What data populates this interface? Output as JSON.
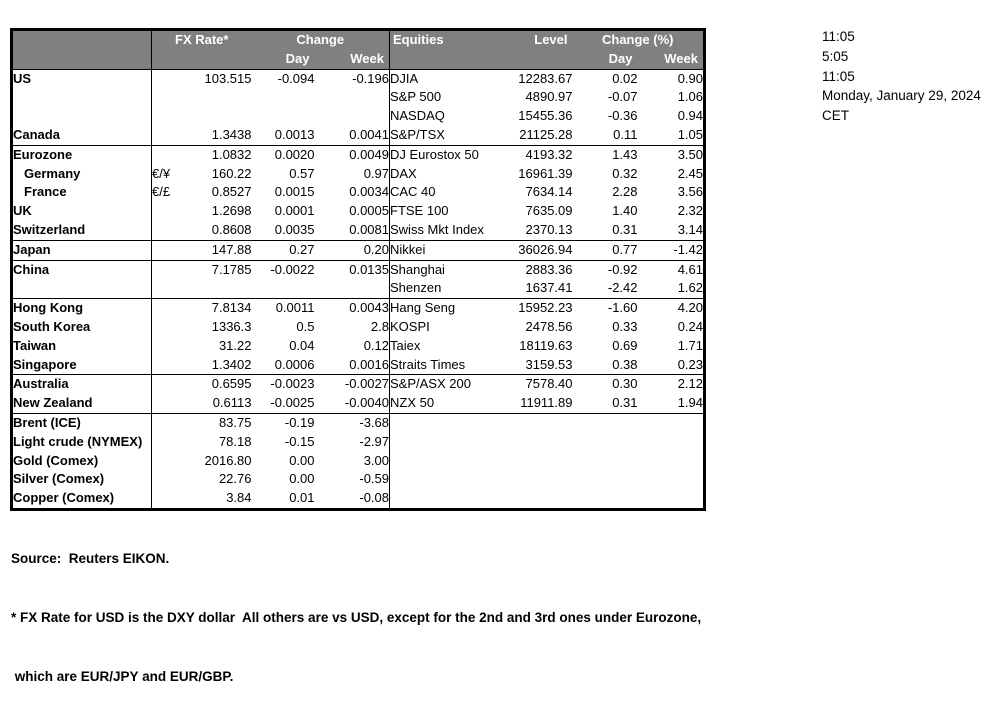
{
  "table": {
    "header": {
      "fx_rate": "FX Rate*",
      "fx_change": "Change",
      "day": "Day",
      "week": "Week",
      "equities": "Equities",
      "level": "Level",
      "eq_change": "Change (%)"
    },
    "rows": [
      {
        "fx_label": "US",
        "fx_sym": "",
        "fx_rate": "103.515",
        "fx_day": "-0.094",
        "fx_week": "-0.196",
        "eq_label": "DJIA",
        "eq_level": "12283.67",
        "eq_day": "0.02",
        "eq_week": "0.90",
        "indent": false,
        "sep": false
      },
      {
        "fx_label": "",
        "fx_sym": "",
        "fx_rate": "",
        "fx_day": "",
        "fx_week": "",
        "eq_label": "S&P 500",
        "eq_level": "4890.97",
        "eq_day": "-0.07",
        "eq_week": "1.06",
        "indent": false,
        "sep": false
      },
      {
        "fx_label": "",
        "fx_sym": "",
        "fx_rate": "",
        "fx_day": "",
        "fx_week": "",
        "eq_label": "NASDAQ",
        "eq_level": "15455.36",
        "eq_day": "-0.36",
        "eq_week": "0.94",
        "indent": false,
        "sep": false
      },
      {
        "fx_label": "Canada",
        "fx_sym": "",
        "fx_rate": "1.3438",
        "fx_day": "0.0013",
        "fx_week": "0.0041",
        "eq_label": "S&P/TSX",
        "eq_level": "21125.28",
        "eq_day": "0.11",
        "eq_week": "1.05",
        "indent": false,
        "sep": true
      },
      {
        "fx_label": "Eurozone",
        "fx_sym": "",
        "fx_rate": "1.0832",
        "fx_day": "0.0020",
        "fx_week": "0.0049",
        "eq_label": "DJ Eurostox 50",
        "eq_level": "4193.32",
        "eq_day": "1.43",
        "eq_week": "3.50",
        "indent": false,
        "sep": false
      },
      {
        "fx_label": "Germany",
        "fx_sym": "€/¥",
        "fx_rate": "160.22",
        "fx_day": "0.57",
        "fx_week": "0.97",
        "eq_label": "DAX",
        "eq_level": "16961.39",
        "eq_day": "0.32",
        "eq_week": "2.45",
        "indent": true,
        "sep": false
      },
      {
        "fx_label": "France",
        "fx_sym": "€/£",
        "fx_rate": "0.8527",
        "fx_day": "0.0015",
        "fx_week": "0.0034",
        "eq_label": "CAC 40",
        "eq_level": "7634.14",
        "eq_day": "2.28",
        "eq_week": "3.56",
        "indent": true,
        "sep": false
      },
      {
        "fx_label": "UK",
        "fx_sym": "",
        "fx_rate": "1.2698",
        "fx_day": "0.0001",
        "fx_week": "0.0005",
        "eq_label": "FTSE 100",
        "eq_level": "7635.09",
        "eq_day": "1.40",
        "eq_week": "2.32",
        "indent": false,
        "sep": false
      },
      {
        "fx_label": "Switzerland",
        "fx_sym": "",
        "fx_rate": "0.8608",
        "fx_day": "0.0035",
        "fx_week": "0.0081",
        "eq_label": "Swiss Mkt Index",
        "eq_level": "2370.13",
        "eq_day": "0.31",
        "eq_week": "3.14",
        "indent": false,
        "sep": true
      },
      {
        "fx_label": "Japan",
        "fx_sym": "",
        "fx_rate": "147.88",
        "fx_day": "0.27",
        "fx_week": "0.20",
        "eq_label": "Nikkei",
        "eq_level": "36026.94",
        "eq_day": "0.77",
        "eq_week": "-1.42",
        "indent": false,
        "sep": true
      },
      {
        "fx_label": "China",
        "fx_sym": "",
        "fx_rate": "7.1785",
        "fx_day": "-0.0022",
        "fx_week": "0.0135",
        "eq_label": "Shanghai",
        "eq_level": "2883.36",
        "eq_day": "-0.92",
        "eq_week": "4.61",
        "indent": false,
        "sep": false
      },
      {
        "fx_label": "",
        "fx_sym": "",
        "fx_rate": "",
        "fx_day": "",
        "fx_week": "",
        "eq_label": "Shenzen",
        "eq_level": "1637.41",
        "eq_day": "-2.42",
        "eq_week": "1.62",
        "indent": false,
        "sep": true
      },
      {
        "fx_label": "Hong Kong",
        "fx_sym": "",
        "fx_rate": "7.8134",
        "fx_day": "0.0011",
        "fx_week": "0.0043",
        "eq_label": "Hang Seng",
        "eq_level": "15952.23",
        "eq_day": "-1.60",
        "eq_week": "4.20",
        "indent": false,
        "sep": false
      },
      {
        "fx_label": "South Korea",
        "fx_sym": "",
        "fx_rate": "1336.3",
        "fx_day": "0.5",
        "fx_week": "2.8",
        "eq_label": "KOSPI",
        "eq_level": "2478.56",
        "eq_day": "0.33",
        "eq_week": "0.24",
        "indent": false,
        "sep": false
      },
      {
        "fx_label": "Taiwan",
        "fx_sym": "",
        "fx_rate": "31.22",
        "fx_day": "0.04",
        "fx_week": "0.12",
        "eq_label": "Taiex",
        "eq_level": "18119.63",
        "eq_day": "0.69",
        "eq_week": "1.71",
        "indent": false,
        "sep": false
      },
      {
        "fx_label": "Singapore",
        "fx_sym": "",
        "fx_rate": "1.3402",
        "fx_day": "0.0006",
        "fx_week": "0.0016",
        "eq_label": "Straits Times",
        "eq_level": "3159.53",
        "eq_day": "0.38",
        "eq_week": "0.23",
        "indent": false,
        "sep": true
      },
      {
        "fx_label": "Australia",
        "fx_sym": "",
        "fx_rate": "0.6595",
        "fx_day": "-0.0023",
        "fx_week": "-0.0027",
        "eq_label": "S&P/ASX  200",
        "eq_level": "7578.40",
        "eq_day": "0.30",
        "eq_week": "2.12",
        "indent": false,
        "sep": false
      },
      {
        "fx_label": "New Zealand",
        "fx_sym": "",
        "fx_rate": "0.6113",
        "fx_day": "-0.0025",
        "fx_week": "-0.0040",
        "eq_label": "NZX 50",
        "eq_level": "11911.89",
        "eq_day": "0.31",
        "eq_week": "1.94",
        "indent": false,
        "sep": true
      },
      {
        "fx_label": "Brent (ICE)",
        "fx_sym": "",
        "fx_rate": "83.75",
        "fx_day": "-0.19",
        "fx_week": "-3.68",
        "eq_label": "",
        "eq_level": "",
        "eq_day": "",
        "eq_week": "",
        "indent": false,
        "sep": false
      },
      {
        "fx_label": "Light crude (NYMEX)",
        "fx_sym": "",
        "fx_rate": "78.18",
        "fx_day": "-0.15",
        "fx_week": "-2.97",
        "eq_label": "",
        "eq_level": "",
        "eq_day": "",
        "eq_week": "",
        "indent": false,
        "sep": false
      },
      {
        "fx_label": "Gold (Comex)",
        "fx_sym": "",
        "fx_rate": "2016.80",
        "fx_day": "0.00",
        "fx_week": "3.00",
        "eq_label": "",
        "eq_level": "",
        "eq_day": "",
        "eq_week": "",
        "indent": false,
        "sep": false
      },
      {
        "fx_label": "Silver (Comex)",
        "fx_sym": "",
        "fx_rate": "22.76",
        "fx_day": "0.00",
        "fx_week": "-0.59",
        "eq_label": "",
        "eq_level": "",
        "eq_day": "",
        "eq_week": "",
        "indent": false,
        "sep": false
      },
      {
        "fx_label": "Copper (Comex)",
        "fx_sym": "",
        "fx_rate": "3.84",
        "fx_day": "0.01",
        "fx_week": "-0.08",
        "eq_label": "",
        "eq_level": "",
        "eq_day": "",
        "eq_week": "",
        "indent": false,
        "sep": false
      }
    ]
  },
  "timestamps": [
    "11:05",
    "5:05",
    "11:05",
    "Monday, January 29, 2024",
    "CET"
  ],
  "footer": {
    "source": "Source:  Reuters EIKON.",
    "note1": "* FX Rate for USD is the DXY dollar  All others are vs USD, except for the 2nd and 3rd ones under Eurozone,",
    "note2": " which are EUR/JPY and EUR/GBP."
  },
  "colors": {
    "header_bg": "#808080",
    "header_text": "#ffffff",
    "border": "#000000"
  }
}
